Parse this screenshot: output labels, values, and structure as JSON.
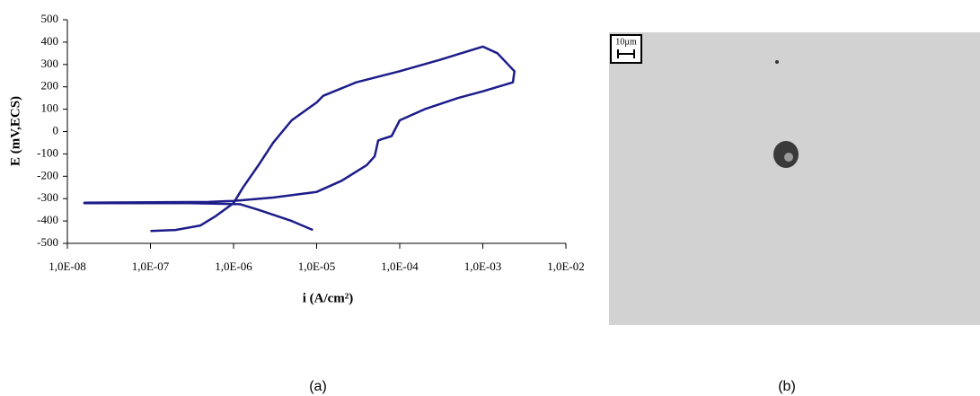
{
  "chart_data": {
    "type": "line",
    "xscale": "log",
    "x_label": "i (A/cm²)",
    "y_label": "E (mV,ECS)",
    "x": [
      9e-06,
      5e-06,
      2e-06,
      1.2e-06,
      3e-07,
      1.6e-08,
      1.6e-08,
      5e-07,
      1e-06,
      3e-06,
      1e-05,
      2e-05,
      4e-05,
      5e-05,
      5.5e-05,
      6e-05,
      8e-05,
      0.0001,
      0.0002,
      0.0005,
      0.001,
      0.0023,
      0.0024,
      0.0015,
      0.001,
      0.0003,
      0.0001,
      3e-05,
      1.2e-05,
      1e-05,
      5e-06,
      3e-06,
      2e-06,
      1.3e-06,
      1e-06,
      6e-07,
      4e-07,
      2e-07,
      1e-07
    ],
    "values": [
      -440,
      -400,
      -350,
      -325,
      -320,
      -320,
      -318,
      -315,
      -310,
      -295,
      -270,
      -220,
      -150,
      -110,
      -40,
      -35,
      -20,
      50,
      100,
      150,
      180,
      220,
      270,
      350,
      380,
      320,
      270,
      220,
      160,
      130,
      50,
      -50,
      -150,
      -250,
      -320,
      -380,
      -420,
      -440,
      -445
    ],
    "color": "#1c1c8a",
    "xlim": [
      1e-08,
      0.01
    ],
    "xticks": [
      {
        "value": 1e-08,
        "label": "1,0E-08"
      },
      {
        "value": 1e-07,
        "label": "1,0E-07"
      },
      {
        "value": 1e-06,
        "label": "1,0E-06"
      },
      {
        "value": 1e-05,
        "label": "1,0E-05"
      },
      {
        "value": 0.0001,
        "label": "1,0E-04"
      },
      {
        "value": 0.001,
        "label": "1,0E-03"
      },
      {
        "value": 0.01,
        "label": "1,0E-02"
      }
    ],
    "ylim": [
      -500,
      500
    ],
    "yticks": [
      -500,
      -400,
      -300,
      -200,
      -100,
      0,
      100,
      200,
      300,
      400,
      500
    ],
    "grid": false
  },
  "micrograph": {
    "scale_label": "10µm"
  },
  "captions": [
    "(a)",
    "(b)"
  ]
}
